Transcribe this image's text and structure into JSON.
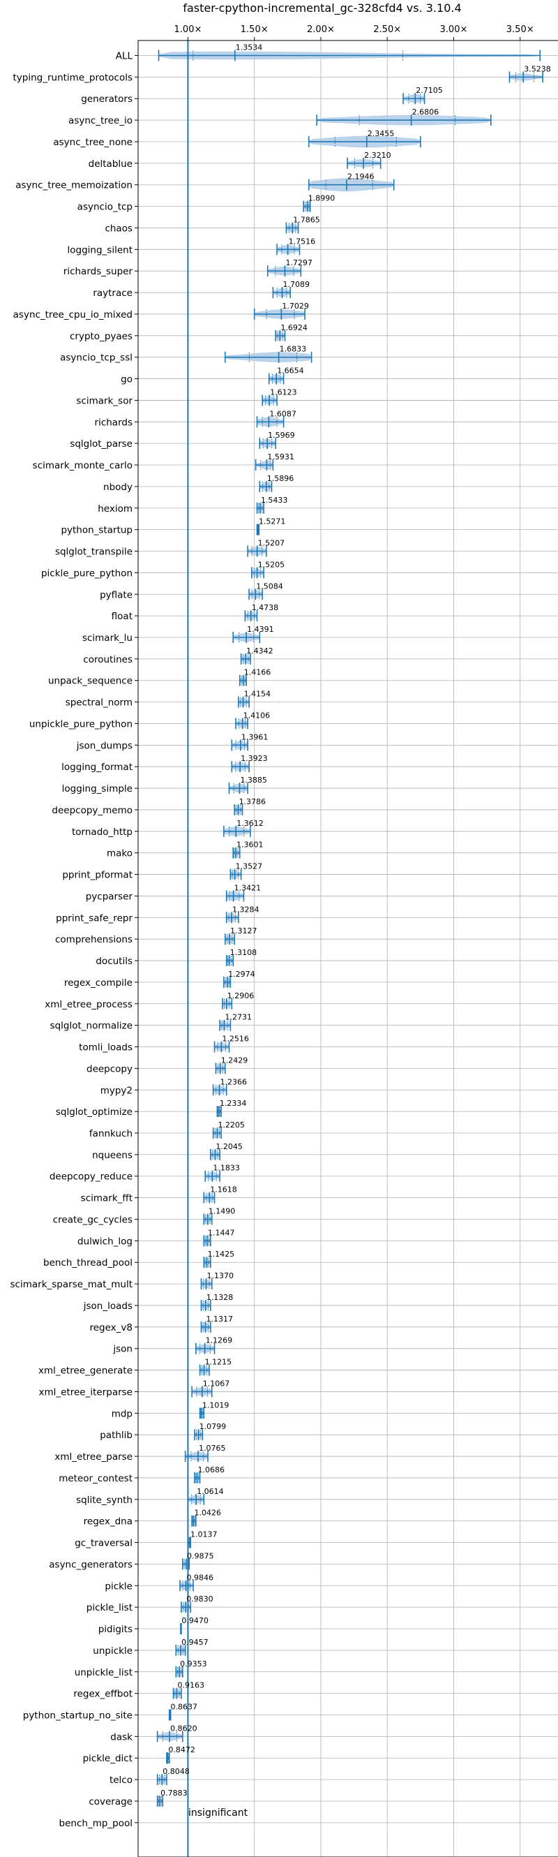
{
  "chart_data": {
    "type": "violin",
    "title": "faster-cpython-incremental_gc-328cfd4 vs. 3.10.4",
    "xlim": [
      0.625,
      3.785
    ],
    "x_ticks": [
      1.0,
      1.5,
      2.0,
      2.5,
      3.0,
      3.5
    ],
    "x_tick_labels": [
      "1.00×",
      "1.50×",
      "2.00×",
      "2.50×",
      "3.00×",
      "3.50×"
    ],
    "reference_line": 1.0,
    "grid": true,
    "colors": {
      "line": "#1f77b4",
      "fill": "#aecbe6"
    },
    "annotation": "insignificant",
    "rows": [
      {
        "name": "ALL",
        "value": 1.3534,
        "label": "1.3534",
        "min": 0.78,
        "max": 3.65,
        "spread": 0.55
      },
      {
        "name": "typing_runtime_protocols",
        "value": 3.5238,
        "label": "3.5238",
        "min": 3.42,
        "max": 3.67,
        "spread": 0.5
      },
      {
        "name": "generators",
        "value": 2.7105,
        "label": "2.7105",
        "min": 2.62,
        "max": 2.78,
        "spread": 0.6
      },
      {
        "name": "async_tree_io",
        "value": 2.6806,
        "label": "2.6806",
        "min": 1.97,
        "max": 3.28,
        "spread": 0.7
      },
      {
        "name": "async_tree_none",
        "value": 2.3455,
        "label": "2.3455",
        "min": 1.91,
        "max": 2.75,
        "spread": 0.8
      },
      {
        "name": "deltablue",
        "value": 2.321,
        "label": "2.3210",
        "min": 2.2,
        "max": 2.45,
        "spread": 0.55
      },
      {
        "name": "async_tree_memoization",
        "value": 2.1946,
        "label": "2.1946",
        "min": 1.91,
        "max": 2.55,
        "spread": 0.9
      },
      {
        "name": "asyncio_tcp",
        "value": 1.899,
        "label": "1.8990",
        "min": 1.87,
        "max": 1.92,
        "spread": 0.6
      },
      {
        "name": "chaos",
        "value": 1.7865,
        "label": "1.7865",
        "min": 1.74,
        "max": 1.83,
        "spread": 0.6
      },
      {
        "name": "logging_silent",
        "value": 1.7516,
        "label": "1.7516",
        "min": 1.67,
        "max": 1.84,
        "spread": 0.6
      },
      {
        "name": "richards_super",
        "value": 1.7297,
        "label": "1.7297",
        "min": 1.6,
        "max": 1.85,
        "spread": 0.6
      },
      {
        "name": "raytrace",
        "value": 1.7089,
        "label": "1.7089",
        "min": 1.64,
        "max": 1.77,
        "spread": 0.6
      },
      {
        "name": "async_tree_cpu_io_mixed",
        "value": 1.7029,
        "label": "1.7029",
        "min": 1.5,
        "max": 1.88,
        "spread": 0.65
      },
      {
        "name": "crypto_pyaes",
        "value": 1.6924,
        "label": "1.6924",
        "min": 1.66,
        "max": 1.73,
        "spread": 0.6
      },
      {
        "name": "asyncio_tcp_ssl",
        "value": 1.6833,
        "label": "1.6833",
        "min": 1.28,
        "max": 1.93,
        "spread": 0.7
      },
      {
        "name": "go",
        "value": 1.6654,
        "label": "1.6654",
        "min": 1.61,
        "max": 1.72,
        "spread": 0.6
      },
      {
        "name": "scimark_sor",
        "value": 1.6123,
        "label": "1.6123",
        "min": 1.56,
        "max": 1.67,
        "spread": 0.6
      },
      {
        "name": "richards",
        "value": 1.6087,
        "label": "1.6087",
        "min": 1.52,
        "max": 1.72,
        "spread": 0.65
      },
      {
        "name": "sqlglot_parse",
        "value": 1.5969,
        "label": "1.5969",
        "min": 1.54,
        "max": 1.66,
        "spread": 0.6
      },
      {
        "name": "scimark_monte_carlo",
        "value": 1.5931,
        "label": "1.5931",
        "min": 1.51,
        "max": 1.64,
        "spread": 0.6
      },
      {
        "name": "nbody",
        "value": 1.5896,
        "label": "1.5896",
        "min": 1.54,
        "max": 1.63,
        "spread": 0.6
      },
      {
        "name": "hexiom",
        "value": 1.5433,
        "label": "1.5433",
        "min": 1.52,
        "max": 1.57,
        "spread": 0.6
      },
      {
        "name": "python_startup",
        "value": 1.5271,
        "label": "1.5271",
        "min": 1.52,
        "max": 1.535,
        "spread": 0.6
      },
      {
        "name": "sqlglot_transpile",
        "value": 1.5207,
        "label": "1.5207",
        "min": 1.45,
        "max": 1.59,
        "spread": 0.6
      },
      {
        "name": "pickle_pure_python",
        "value": 1.5205,
        "label": "1.5205",
        "min": 1.48,
        "max": 1.57,
        "spread": 0.6
      },
      {
        "name": "pyflate",
        "value": 1.5084,
        "label": "1.5084",
        "min": 1.46,
        "max": 1.56,
        "spread": 0.6
      },
      {
        "name": "float",
        "value": 1.4738,
        "label": "1.4738",
        "min": 1.43,
        "max": 1.52,
        "spread": 0.6
      },
      {
        "name": "scimark_lu",
        "value": 1.4391,
        "label": "1.4391",
        "min": 1.34,
        "max": 1.54,
        "spread": 0.6
      },
      {
        "name": "coroutines",
        "value": 1.4342,
        "label": "1.4342",
        "min": 1.4,
        "max": 1.47,
        "spread": 0.6
      },
      {
        "name": "unpack_sequence",
        "value": 1.4166,
        "label": "1.4166",
        "min": 1.39,
        "max": 1.44,
        "spread": 0.6
      },
      {
        "name": "spectral_norm",
        "value": 1.4154,
        "label": "1.4154",
        "min": 1.38,
        "max": 1.46,
        "spread": 0.6
      },
      {
        "name": "unpickle_pure_python",
        "value": 1.4106,
        "label": "1.4106",
        "min": 1.36,
        "max": 1.45,
        "spread": 0.6
      },
      {
        "name": "json_dumps",
        "value": 1.3961,
        "label": "1.3961",
        "min": 1.33,
        "max": 1.45,
        "spread": 0.6
      },
      {
        "name": "logging_format",
        "value": 1.3923,
        "label": "1.3923",
        "min": 1.33,
        "max": 1.46,
        "spread": 0.6
      },
      {
        "name": "logging_simple",
        "value": 1.3885,
        "label": "1.3885",
        "min": 1.31,
        "max": 1.45,
        "spread": 0.6
      },
      {
        "name": "deepcopy_memo",
        "value": 1.3786,
        "label": "1.3786",
        "min": 1.35,
        "max": 1.41,
        "spread": 0.6
      },
      {
        "name": "tornado_http",
        "value": 1.3612,
        "label": "1.3612",
        "min": 1.27,
        "max": 1.47,
        "spread": 0.65
      },
      {
        "name": "mako",
        "value": 1.3601,
        "label": "1.3601",
        "min": 1.34,
        "max": 1.39,
        "spread": 0.6
      },
      {
        "name": "pprint_pformat",
        "value": 1.3527,
        "label": "1.3527",
        "min": 1.32,
        "max": 1.4,
        "spread": 0.6
      },
      {
        "name": "pycparser",
        "value": 1.3421,
        "label": "1.3421",
        "min": 1.29,
        "max": 1.42,
        "spread": 0.65
      },
      {
        "name": "pprint_safe_repr",
        "value": 1.3284,
        "label": "1.3284",
        "min": 1.29,
        "max": 1.38,
        "spread": 0.6
      },
      {
        "name": "comprehensions",
        "value": 1.3127,
        "label": "1.3127",
        "min": 1.28,
        "max": 1.35,
        "spread": 0.6
      },
      {
        "name": "docutils",
        "value": 1.3108,
        "label": "1.3108",
        "min": 1.29,
        "max": 1.34,
        "spread": 0.6
      },
      {
        "name": "regex_compile",
        "value": 1.2974,
        "label": "1.2974",
        "min": 1.27,
        "max": 1.32,
        "spread": 0.6
      },
      {
        "name": "xml_etree_process",
        "value": 1.2906,
        "label": "1.2906",
        "min": 1.26,
        "max": 1.33,
        "spread": 0.6
      },
      {
        "name": "sqlglot_normalize",
        "value": 1.2731,
        "label": "1.2731",
        "min": 1.24,
        "max": 1.32,
        "spread": 0.6
      },
      {
        "name": "tomli_loads",
        "value": 1.2516,
        "label": "1.2516",
        "min": 1.2,
        "max": 1.31,
        "spread": 0.6
      },
      {
        "name": "deepcopy",
        "value": 1.2429,
        "label": "1.2429",
        "min": 1.21,
        "max": 1.28,
        "spread": 0.6
      },
      {
        "name": "mypy2",
        "value": 1.2366,
        "label": "1.2366",
        "min": 1.19,
        "max": 1.29,
        "spread": 0.6
      },
      {
        "name": "sqlglot_optimize",
        "value": 1.2334,
        "label": "1.2334",
        "min": 1.22,
        "max": 1.25,
        "spread": 0.6
      },
      {
        "name": "fannkuch",
        "value": 1.2205,
        "label": "1.2205",
        "min": 1.19,
        "max": 1.25,
        "spread": 0.6
      },
      {
        "name": "nqueens",
        "value": 1.2045,
        "label": "1.2045",
        "min": 1.17,
        "max": 1.24,
        "spread": 0.6
      },
      {
        "name": "deepcopy_reduce",
        "value": 1.1833,
        "label": "1.1833",
        "min": 1.13,
        "max": 1.24,
        "spread": 0.6
      },
      {
        "name": "scimark_fft",
        "value": 1.1618,
        "label": "1.1618",
        "min": 1.12,
        "max": 1.2,
        "spread": 0.6
      },
      {
        "name": "create_gc_cycles",
        "value": 1.149,
        "label": "1.1490",
        "min": 1.12,
        "max": 1.18,
        "spread": 0.6
      },
      {
        "name": "dulwich_log",
        "value": 1.1447,
        "label": "1.1447",
        "min": 1.12,
        "max": 1.17,
        "spread": 0.6
      },
      {
        "name": "bench_thread_pool",
        "value": 1.1425,
        "label": "1.1425",
        "min": 1.12,
        "max": 1.17,
        "spread": 0.6
      },
      {
        "name": "scimark_sparse_mat_mult",
        "value": 1.137,
        "label": "1.1370",
        "min": 1.1,
        "max": 1.18,
        "spread": 0.6
      },
      {
        "name": "json_loads",
        "value": 1.1328,
        "label": "1.1328",
        "min": 1.1,
        "max": 1.17,
        "spread": 0.6
      },
      {
        "name": "regex_v8",
        "value": 1.1317,
        "label": "1.1317",
        "min": 1.1,
        "max": 1.17,
        "spread": 0.6
      },
      {
        "name": "json",
        "value": 1.1269,
        "label": "1.1269",
        "min": 1.06,
        "max": 1.2,
        "spread": 0.6
      },
      {
        "name": "xml_etree_generate",
        "value": 1.1215,
        "label": "1.1215",
        "min": 1.09,
        "max": 1.16,
        "spread": 0.6
      },
      {
        "name": "xml_etree_iterparse",
        "value": 1.1067,
        "label": "1.1067",
        "min": 1.03,
        "max": 1.18,
        "spread": 0.6
      },
      {
        "name": "mdp",
        "value": 1.1019,
        "label": "1.1019",
        "min": 1.09,
        "max": 1.12,
        "spread": 0.6
      },
      {
        "name": "pathlib",
        "value": 1.0799,
        "label": "1.0799",
        "min": 1.05,
        "max": 1.11,
        "spread": 0.6
      },
      {
        "name": "xml_etree_parse",
        "value": 1.0765,
        "label": "1.0765",
        "min": 0.98,
        "max": 1.15,
        "spread": 0.6
      },
      {
        "name": "meteor_contest",
        "value": 1.0686,
        "label": "1.0686",
        "min": 1.05,
        "max": 1.09,
        "spread": 0.6
      },
      {
        "name": "sqlite_synth",
        "value": 1.0614,
        "label": "1.0614",
        "min": 1.0,
        "max": 1.12,
        "spread": 0.6
      },
      {
        "name": "regex_dna",
        "value": 1.0426,
        "label": "1.0426",
        "min": 1.03,
        "max": 1.06,
        "spread": 0.6
      },
      {
        "name": "gc_traversal",
        "value": 1.0137,
        "label": "1.0137",
        "min": 1.0,
        "max": 1.02,
        "spread": 0.6
      },
      {
        "name": "async_generators",
        "value": 0.9875,
        "label": "0.9875",
        "min": 0.96,
        "max": 1.01,
        "spread": 0.6
      },
      {
        "name": "pickle",
        "value": 0.9846,
        "label": "0.9846",
        "min": 0.94,
        "max": 1.04,
        "spread": 0.6
      },
      {
        "name": "pickle_list",
        "value": 0.983,
        "label": "0.9830",
        "min": 0.95,
        "max": 1.02,
        "spread": 0.6
      },
      {
        "name": "pidigits",
        "value": 0.947,
        "label": "0.9470",
        "min": 0.945,
        "max": 0.95,
        "spread": 0.6
      },
      {
        "name": "unpickle",
        "value": 0.9457,
        "label": "0.9457",
        "min": 0.91,
        "max": 0.98,
        "spread": 0.6
      },
      {
        "name": "unpickle_list",
        "value": 0.9353,
        "label": "0.9353",
        "min": 0.91,
        "max": 0.96,
        "spread": 0.6
      },
      {
        "name": "regex_effbot",
        "value": 0.9163,
        "label": "0.9163",
        "min": 0.89,
        "max": 0.95,
        "spread": 0.6
      },
      {
        "name": "python_startup_no_site",
        "value": 0.8637,
        "label": "0.8637",
        "min": 0.86,
        "max": 0.87,
        "spread": 0.6
      },
      {
        "name": "dask",
        "value": 0.862,
        "label": "0.8620",
        "min": 0.77,
        "max": 0.96,
        "spread": 0.6
      },
      {
        "name": "pickle_dict",
        "value": 0.8472,
        "label": "0.8472",
        "min": 0.84,
        "max": 0.86,
        "spread": 0.6
      },
      {
        "name": "telco",
        "value": 0.8048,
        "label": "0.8048",
        "min": 0.77,
        "max": 0.84,
        "spread": 0.6
      },
      {
        "name": "coverage",
        "value": 0.7883,
        "label": "0.7883",
        "min": 0.77,
        "max": 0.81,
        "spread": 0.6
      },
      {
        "name": "bench_mp_pool",
        "value": null,
        "label": "",
        "min": null,
        "max": null,
        "spread": 0
      }
    ]
  }
}
